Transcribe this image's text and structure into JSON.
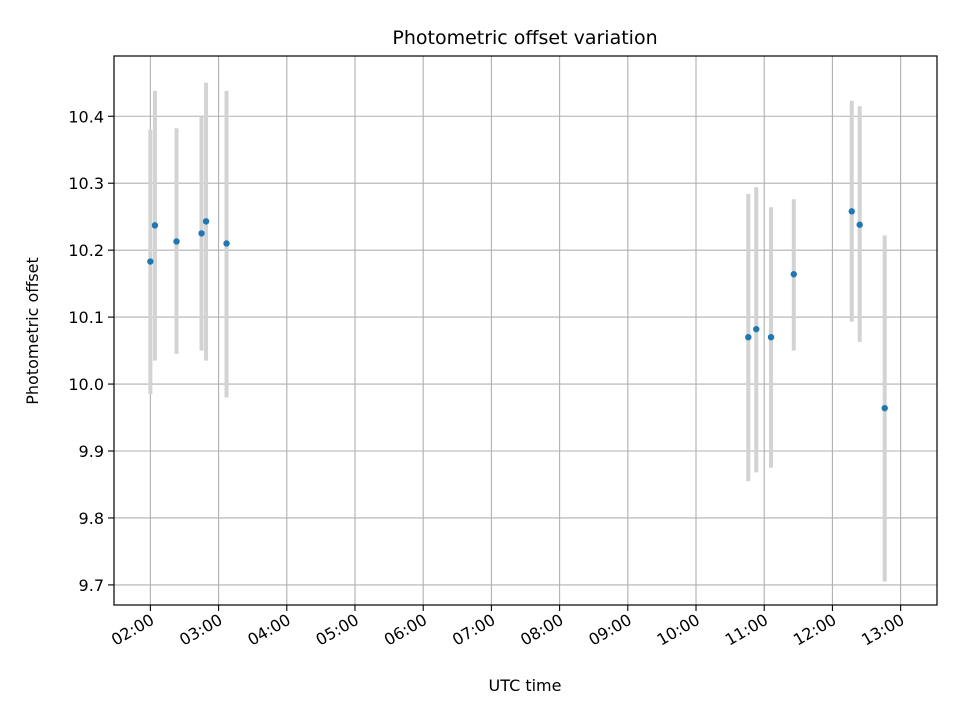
{
  "chart_data": {
    "type": "scatter",
    "title": "Photometric offset variation",
    "xlabel": "UTC time",
    "ylabel": "Photometric offset",
    "x_unit": "UTC time (hours)",
    "xlim": [
      "01:28",
      "13:32"
    ],
    "ylim": [
      9.67,
      10.49
    ],
    "grid": true,
    "x_ticks": [
      "02:00",
      "03:00",
      "04:00",
      "05:00",
      "06:00",
      "07:00",
      "08:00",
      "09:00",
      "10:00",
      "11:00",
      "12:00",
      "13:00"
    ],
    "y_ticks": [
      "9.7",
      "9.8",
      "9.9",
      "10.0",
      "10.1",
      "10.2",
      "10.3",
      "10.4"
    ],
    "point_color": "#1f77b4",
    "errorbar_color": "#d3d3d3",
    "points": [
      {
        "x": "02:00",
        "y": 10.183,
        "err_low": 9.985,
        "err_high": 10.38
      },
      {
        "x": "02:04",
        "y": 10.237,
        "err_low": 10.035,
        "err_high": 10.438
      },
      {
        "x": "02:23",
        "y": 10.213,
        "err_low": 10.045,
        "err_high": 10.382
      },
      {
        "x": "02:45",
        "y": 10.225,
        "err_low": 10.05,
        "err_high": 10.4
      },
      {
        "x": "02:49",
        "y": 10.243,
        "err_low": 10.035,
        "err_high": 10.45
      },
      {
        "x": "03:07",
        "y": 10.21,
        "err_low": 9.98,
        "err_high": 10.438
      },
      {
        "x": "10:46",
        "y": 10.07,
        "err_low": 9.855,
        "err_high": 10.284
      },
      {
        "x": "10:53",
        "y": 10.082,
        "err_low": 9.868,
        "err_high": 10.294
      },
      {
        "x": "11:06",
        "y": 10.07,
        "err_low": 9.875,
        "err_high": 10.264
      },
      {
        "x": "11:26",
        "y": 10.164,
        "err_low": 10.05,
        "err_high": 10.276
      },
      {
        "x": "12:17",
        "y": 10.258,
        "err_low": 10.093,
        "err_high": 10.423
      },
      {
        "x": "12:24",
        "y": 10.238,
        "err_low": 10.063,
        "err_high": 10.415
      },
      {
        "x": "12:46",
        "y": 9.964,
        "err_low": 9.705,
        "err_high": 10.222
      }
    ]
  }
}
